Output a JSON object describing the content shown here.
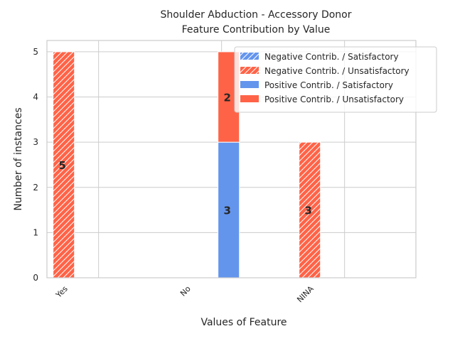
{
  "chart_data": {
    "type": "bar",
    "title_lines": [
      "Shoulder Abduction - Accessory Donor",
      "Feature Contribution by Value"
    ],
    "xlabel": "Values of Feature",
    "ylabel": "Number of instances",
    "categories": [
      "Yes",
      "No",
      "NINA"
    ],
    "ylim": [
      0,
      5.25
    ],
    "yticks": [
      0,
      1,
      2,
      3,
      4,
      5
    ],
    "grid": true,
    "legend_position": "top-right",
    "series": [
      {
        "name": "Negative Contrib. / Satisfactory",
        "group": "negative",
        "values": [
          0,
          0,
          0
        ],
        "color": "#6495ED",
        "hatch": true
      },
      {
        "name": "Negative Contrib. / Unsatisfactory",
        "group": "negative",
        "values": [
          5,
          0,
          3
        ],
        "color": "#FF6347",
        "hatch": true
      },
      {
        "name": "Positive Contrib. / Satisfactory",
        "group": "positive",
        "values": [
          0,
          3,
          0
        ],
        "color": "#6495ED",
        "hatch": false
      },
      {
        "name": "Positive Contrib. / Unsatisfactory",
        "group": "positive",
        "values": [
          0,
          2,
          0
        ],
        "color": "#FF6347",
        "hatch": false
      }
    ]
  }
}
